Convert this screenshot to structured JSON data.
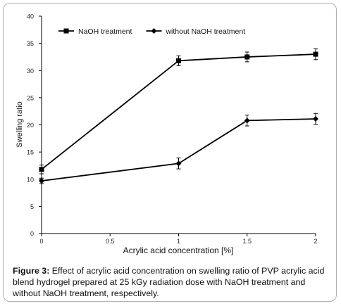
{
  "chart_data": {
    "type": "line",
    "x": [
      0,
      0.5,
      1,
      1.5,
      2
    ],
    "x_ticks": [
      "0",
      "0.5",
      "1",
      "1.5",
      "2"
    ],
    "y_ticks": [
      "0",
      "5",
      "10",
      "15",
      "20",
      "25",
      "30",
      "35",
      "40"
    ],
    "xlabel": "Acrylic acid concentration [%]",
    "ylabel": "Swelling ratio",
    "xlim": [
      0,
      2
    ],
    "ylim": [
      0,
      40
    ],
    "grid": false,
    "legend_position": "top-left",
    "series": [
      {
        "name": "NaOH treatment",
        "marker": "square",
        "color": "#000000",
        "points": [
          {
            "x": 0,
            "y": 11.8,
            "err": 0.8
          },
          {
            "x": 1,
            "y": 31.8,
            "err": 0.9
          },
          {
            "x": 1.5,
            "y": 32.5,
            "err": 0.9
          },
          {
            "x": 2,
            "y": 33.0,
            "err": 1.0
          }
        ]
      },
      {
        "name": "without NaOH treatment",
        "marker": "diamond",
        "color": "#000000",
        "points": [
          {
            "x": 0,
            "y": 9.7,
            "err": 0.5
          },
          {
            "x": 1,
            "y": 12.9,
            "err": 1.0
          },
          {
            "x": 1.5,
            "y": 20.8,
            "err": 1.0
          },
          {
            "x": 2,
            "y": 21.1,
            "err": 1.0
          }
        ]
      }
    ]
  },
  "caption": {
    "label": "Figure 3:",
    "text": "Effect of acrylic acid concentration on swelling ratio of PVP acrylic acid blend hydrogel prepared at 25 kGy radiation dose with NaOH treatment and without NaOH treatment, respectively."
  }
}
